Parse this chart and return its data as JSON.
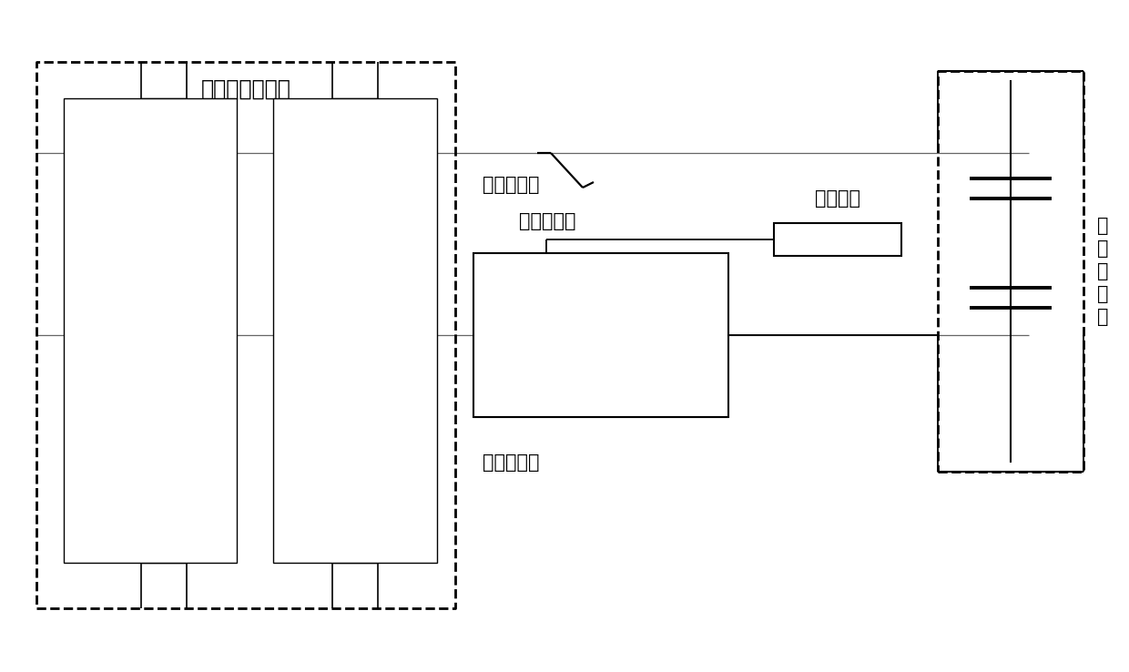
{
  "bg_color": "#ffffff",
  "text_color": "#000000",
  "title_battery": "电动车动力电池",
  "label_precharge_relay": "预充继电器",
  "label_precharge_group": "预充电组",
  "label_pos_relay": "正极继电器",
  "label_neg_relay": "负极继电器",
  "label_motor_ctrl": "电\n机\n控\n制\n器",
  "font_size_labels": 15,
  "font_size_title": 17,
  "fig_width": 12.4,
  "fig_height": 7.38,
  "dpi": 100
}
